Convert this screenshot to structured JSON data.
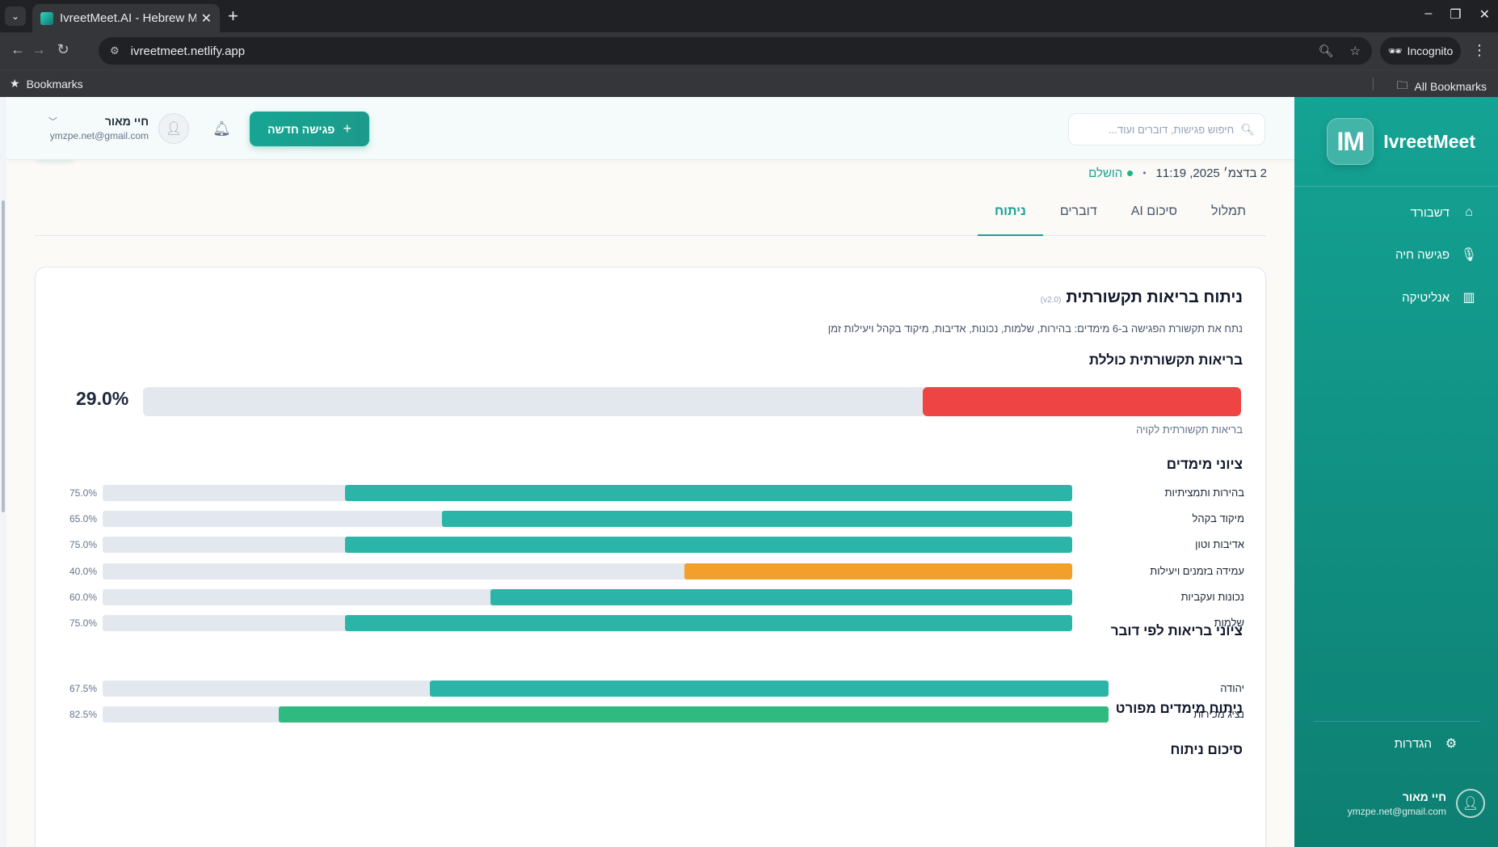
{
  "browser": {
    "tab_title": "IvreetMeet.AI - Hebrew M",
    "url": "ivreetmeet.netlify.app",
    "incognito_label": "Incognito",
    "bookmarks_label": "Bookmarks",
    "all_bookmarks_label": "All Bookmarks"
  },
  "sidebar": {
    "logo_badge": "IM",
    "logo_text": "IvreetMeet",
    "nav": [
      {
        "label": "דשבורד",
        "icon": "home-icon"
      },
      {
        "label": "פגישה חיה",
        "icon": "mic-icon"
      },
      {
        "label": "אנליטיקה",
        "icon": "chart-icon"
      }
    ],
    "settings_label": "הגדרות",
    "user_name": "חיי מאור",
    "user_email": "ymzpe.net@gmail.com"
  },
  "header": {
    "search_placeholder": "חיפוש פגישות, דוברים ועוד...",
    "new_meeting_label": "פגישה חדשה",
    "user_name": "חיי מאור",
    "user_email": "ymzpe.net@gmail.com"
  },
  "meeting": {
    "date_time": "2 בדצמ׳ 2025, 11:19",
    "status": "הושלם"
  },
  "tabs": [
    {
      "label": "תמלול",
      "active": false
    },
    {
      "label": "סיכום AI",
      "active": false
    },
    {
      "label": "דוברים",
      "active": false
    },
    {
      "label": "ניתוח",
      "active": true
    }
  ],
  "analysis": {
    "title": "ניתוח בריאות תקשורתית",
    "version": "(v2.0)",
    "description": "נתח את תקשורת הפגישה ב-6 מימדים: בהירות, שלמות, נכונות, אדיבות, מיקוד בקהל ויעילות זמן",
    "overall": {
      "title": "בריאות תקשורתית כוללת",
      "value": 29.0,
      "value_label": "29.0%",
      "subtitle": "בריאות תקשורתית לקויה",
      "color": "#ef4444"
    },
    "dimensions_title": "ציוני מימדים",
    "dimensions": [
      {
        "label": "בהירות ותמציתיות",
        "value": 75.0,
        "value_label": "75.0%",
        "color": "#2bb5a8"
      },
      {
        "label": "מיקוד בקהל",
        "value": 65.0,
        "value_label": "65.0%",
        "color": "#2bb5a8"
      },
      {
        "label": "אדיבות וטון",
        "value": 75.0,
        "value_label": "75.0%",
        "color": "#2bb5a8"
      },
      {
        "label": "עמידה בזמנים ויעילות",
        "value": 40.0,
        "value_label": "40.0%",
        "color": "#f2a02b"
      },
      {
        "label": "נכונות ועקביות",
        "value": 60.0,
        "value_label": "60.0%",
        "color": "#2bb5a8"
      },
      {
        "label": "שלמות",
        "value": 75.0,
        "value_label": "75.0%",
        "color": "#2bb5a8"
      }
    ],
    "speakers_title": "ציוני בריאות לפי דובר",
    "speakers": [
      {
        "label": "יהודה",
        "value": 67.5,
        "value_label": "67.5%",
        "color": "#2bb5a8"
      },
      {
        "label": "נציג מכירות",
        "value": 82.5,
        "value_label": "82.5%",
        "color": "#2fbb80"
      }
    ],
    "detailed_title": "ניתוח מימדים מפורט",
    "summary_title": "סיכום ניתוח"
  }
}
